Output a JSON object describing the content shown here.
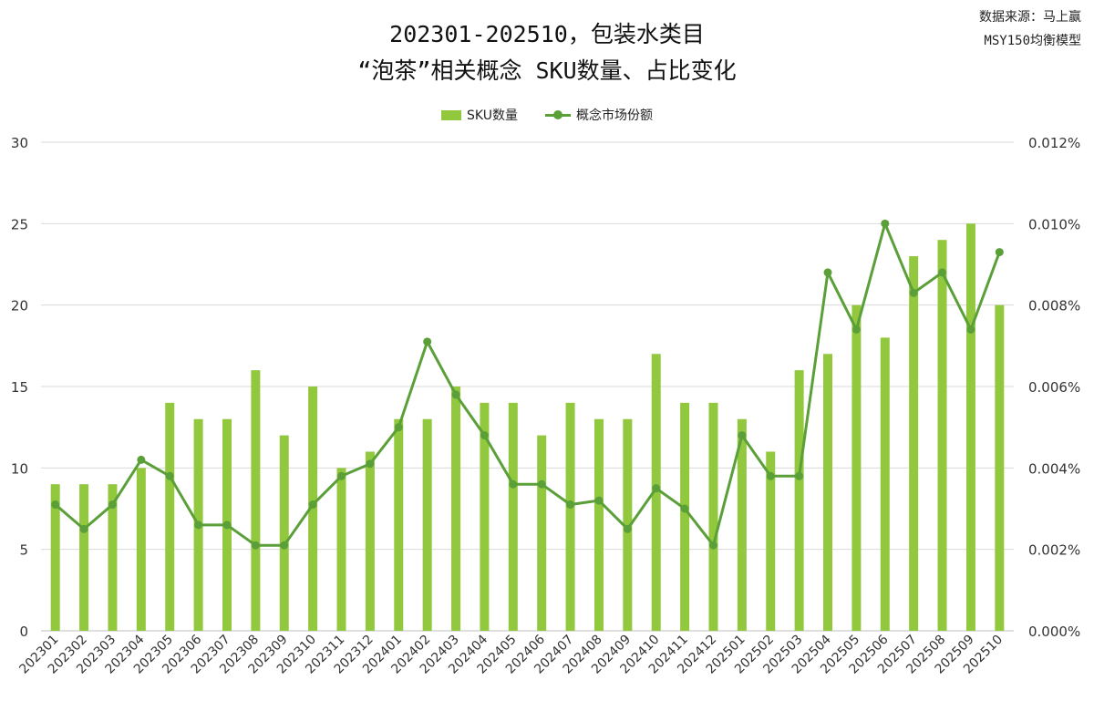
{
  "header": {
    "title_line1": "202301-202510，包装水类目",
    "title_line2": "“泡茶”相关概念 SKU数量、占比变化",
    "source_line1": "数据来源：马上赢",
    "source_line2": "MSY150均衡模型"
  },
  "legend": {
    "bar_label": "SKU数量",
    "line_label": "概念市场份额"
  },
  "colors": {
    "bar": "#92c83e",
    "line": "#5b9f39",
    "grid": "#d9d9d9",
    "axis": "#bfbfbf"
  },
  "chart_data": {
    "type": "bar",
    "categories": [
      "202301",
      "202302",
      "202303",
      "202304",
      "202305",
      "202306",
      "202307",
      "202308",
      "202309",
      "202310",
      "202311",
      "202312",
      "202401",
      "202402",
      "202403",
      "202404",
      "202405",
      "202406",
      "202407",
      "202408",
      "202409",
      "202410",
      "202411",
      "202412",
      "202501",
      "202502",
      "202503",
      "202504",
      "202505",
      "202506",
      "202507",
      "202508",
      "202509",
      "202510"
    ],
    "series": [
      {
        "name": "SKU数量",
        "type": "bar",
        "axis": "left",
        "values": [
          9,
          9,
          9,
          10,
          14,
          13,
          13,
          16,
          12,
          15,
          10,
          11,
          13,
          13,
          15,
          14,
          14,
          12,
          14,
          13,
          13,
          17,
          14,
          14,
          13,
          11,
          16,
          17,
          20,
          18,
          23,
          24,
          25,
          20
        ]
      },
      {
        "name": "概念市场份额",
        "type": "line",
        "axis": "right",
        "values": [
          0.0031,
          0.0025,
          0.0031,
          0.0042,
          0.0038,
          0.0026,
          0.0026,
          0.0021,
          0.0021,
          0.0031,
          0.0038,
          0.0041,
          0.005,
          0.0071,
          0.0058,
          0.0048,
          0.0036,
          0.0036,
          0.0031,
          0.0032,
          0.0025,
          0.0035,
          0.003,
          0.0021,
          0.0048,
          0.0038,
          0.0038,
          0.0088,
          0.0074,
          0.01,
          0.0083,
          0.0088,
          0.0074,
          0.0093
        ]
      }
    ],
    "y_left": {
      "ylim": [
        0,
        30
      ],
      "ticks": [
        "0",
        "5",
        "10",
        "15",
        "20",
        "25",
        "30"
      ]
    },
    "y_right": {
      "ylim": [
        0,
        0.012
      ],
      "ticks": [
        "0.000%",
        "0.002%",
        "0.004%",
        "0.006%",
        "0.008%",
        "0.010%",
        "0.012%"
      ]
    },
    "grid": true,
    "legend_position": "top-center"
  }
}
